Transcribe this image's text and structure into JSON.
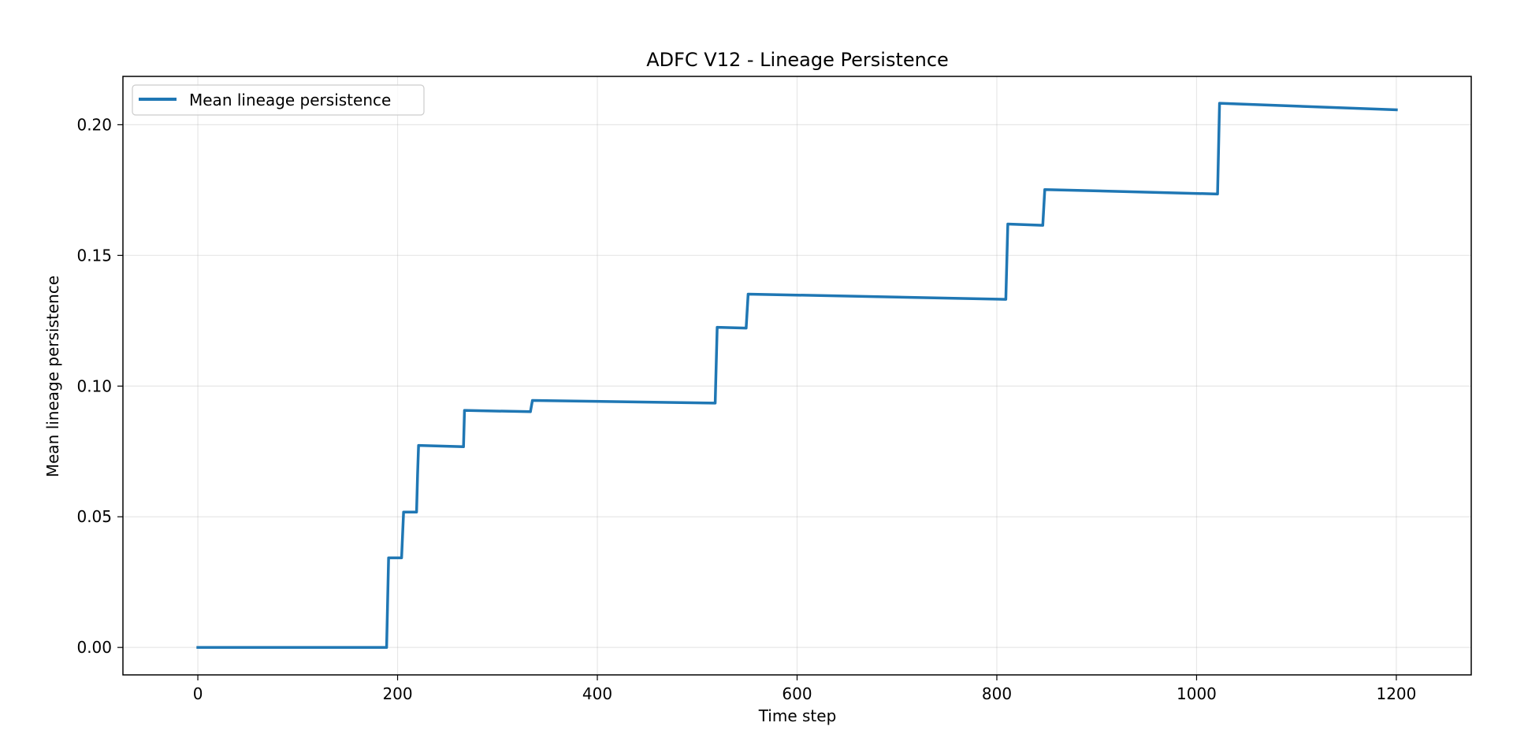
{
  "chart_data": {
    "type": "line",
    "title": "ADFC V12 - Lineage Persistence",
    "xlabel": "Time step",
    "ylabel": "Mean lineage persistence",
    "xlim": [
      -75,
      1275
    ],
    "ylim": [
      -0.0105,
      0.2185
    ],
    "xticks": [
      0,
      200,
      400,
      600,
      800,
      1000,
      1200
    ],
    "xtick_labels": [
      "0",
      "200",
      "400",
      "600",
      "800",
      "1000",
      "1200"
    ],
    "yticks": [
      0.0,
      0.05,
      0.1,
      0.15,
      0.2
    ],
    "ytick_labels": [
      "0.00",
      "0.05",
      "0.10",
      "0.15",
      "0.20"
    ],
    "grid": true,
    "legend": {
      "position": "top-left"
    },
    "series": [
      {
        "name": "Mean lineage persistence",
        "color": "#1f77b4",
        "x": [
          0,
          189,
          191,
          204,
          206,
          219,
          220,
          221,
          266,
          267,
          333,
          335,
          518,
          520,
          549,
          551,
          809,
          811,
          846,
          848,
          1021,
          1023,
          1200
        ],
        "y": [
          0.0,
          0.0,
          0.0343,
          0.0343,
          0.0518,
          0.0518,
          0.066,
          0.0773,
          0.0768,
          0.0907,
          0.0902,
          0.0945,
          0.0935,
          0.1225,
          0.1222,
          0.1352,
          0.1332,
          0.162,
          0.1615,
          0.1752,
          0.1735,
          0.2082,
          0.2057
        ]
      }
    ]
  }
}
